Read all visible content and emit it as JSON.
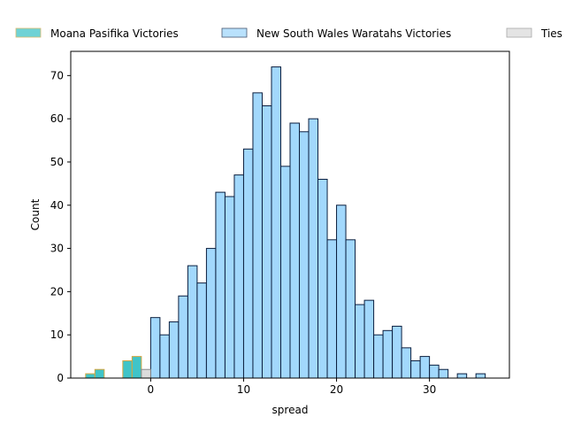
{
  "chart_data": {
    "type": "bar",
    "title": "",
    "xlabel": "spread",
    "ylabel": "Count",
    "xlim": [
      -8.6,
      38.6
    ],
    "ylim": [
      0,
      75.6
    ],
    "xticks": [
      0,
      10,
      20,
      30
    ],
    "yticks": [
      0,
      10,
      20,
      30,
      40,
      50,
      60,
      70
    ],
    "grid": false,
    "legend_position": "top",
    "bin_width": 1,
    "series": [
      {
        "name": "Moana Pasifika Victories",
        "color": "#40c4c8",
        "edge_color": "#d4a640",
        "bins": [
          {
            "x": -6.5,
            "count": 1
          },
          {
            "x": -5.5,
            "count": 2
          },
          {
            "x": -2.5,
            "count": 4
          },
          {
            "x": -1.5,
            "count": 5
          }
        ]
      },
      {
        "name": "New South Wales Waratahs Victories",
        "color": "#a2d8fc",
        "edge_color": "#0b1f3f",
        "bins": [
          {
            "x": 0.5,
            "count": 14
          },
          {
            "x": 1.5,
            "count": 10
          },
          {
            "x": 2.5,
            "count": 13
          },
          {
            "x": 3.5,
            "count": 19
          },
          {
            "x": 4.5,
            "count": 26
          },
          {
            "x": 5.5,
            "count": 22
          },
          {
            "x": 6.5,
            "count": 30
          },
          {
            "x": 7.5,
            "count": 43
          },
          {
            "x": 8.5,
            "count": 42
          },
          {
            "x": 9.5,
            "count": 47
          },
          {
            "x": 10.5,
            "count": 53
          },
          {
            "x": 11.5,
            "count": 66
          },
          {
            "x": 12.5,
            "count": 63
          },
          {
            "x": 13.5,
            "count": 72
          },
          {
            "x": 14.5,
            "count": 49
          },
          {
            "x": 15.5,
            "count": 59
          },
          {
            "x": 16.5,
            "count": 57
          },
          {
            "x": 17.5,
            "count": 60
          },
          {
            "x": 18.5,
            "count": 46
          },
          {
            "x": 19.5,
            "count": 32
          },
          {
            "x": 20.5,
            "count": 40
          },
          {
            "x": 21.5,
            "count": 32
          },
          {
            "x": 22.5,
            "count": 17
          },
          {
            "x": 23.5,
            "count": 18
          },
          {
            "x": 24.5,
            "count": 10
          },
          {
            "x": 25.5,
            "count": 11
          },
          {
            "x": 26.5,
            "count": 12
          },
          {
            "x": 27.5,
            "count": 7
          },
          {
            "x": 28.5,
            "count": 4
          },
          {
            "x": 29.5,
            "count": 5
          },
          {
            "x": 30.5,
            "count": 3
          },
          {
            "x": 31.5,
            "count": 2
          },
          {
            "x": 33.5,
            "count": 1
          },
          {
            "x": 35.5,
            "count": 1
          }
        ]
      },
      {
        "name": "Ties",
        "color": "#dcdcdc",
        "edge_color": "#8a8a8a",
        "bins": [
          {
            "x": -0.5,
            "count": 2
          }
        ]
      }
    ]
  }
}
